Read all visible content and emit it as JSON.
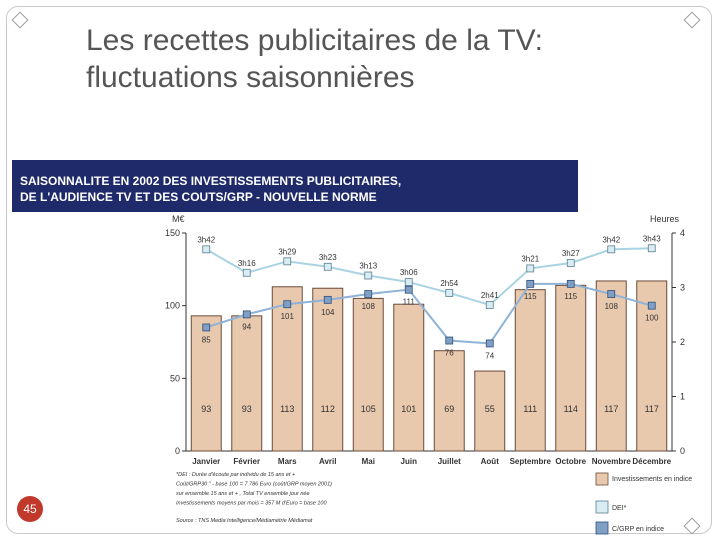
{
  "slide": {
    "title_line1": "Les recettes publicitaires de la TV:",
    "title_line2": "fluctuations saisonnières",
    "banner_line1": "SAISONNALITE EN 2002 DES INVESTISSEMENTS PUBLICITAIRES,",
    "banner_line2": "DE L'AUDIENCE TV ET DES COUTS/GRP - NOUVELLE NORME",
    "page_number": "45"
  },
  "colors": {
    "banner_bg": "#1f2a6b",
    "bar_fill": "#e8c9ae",
    "dei_fill": "#d9ecf4",
    "grp_fill": "#7f9fc4",
    "dei_line": "#a9d3e3",
    "grp_line": "#8fb2d8",
    "page_badge": "#c0392b"
  },
  "chart_data": {
    "type": "bar",
    "categories": [
      "Janvier",
      "Février",
      "Mars",
      "Avril",
      "Mai",
      "Juin",
      "Juillet",
      "Août",
      "Septembre",
      "Octobre",
      "Novembre",
      "Décembre"
    ],
    "ylabel": "M€",
    "y2label": "Heures",
    "ylim": [
      0,
      150
    ],
    "yticks": [
      "0",
      "50",
      "100",
      "150"
    ],
    "y2lim": [
      0,
      4
    ],
    "y2ticks": [
      "0",
      "1",
      "2",
      "3",
      "4"
    ],
    "series": [
      {
        "name": "Investissements en indice",
        "kind": "bar",
        "values": [
          93,
          93,
          113,
          112,
          105,
          101,
          69,
          55,
          111,
          114,
          117,
          117
        ]
      },
      {
        "name": "DEI*",
        "kind": "line",
        "axis": "right",
        "values": [
          3.7,
          3.27,
          3.48,
          3.38,
          3.22,
          3.1,
          2.9,
          2.68,
          3.35,
          3.45,
          3.7,
          3.72
        ],
        "labels": [
          "3h42",
          "3h16",
          "3h29",
          "3h23",
          "3h13",
          "3h06",
          "2h54",
          "2h41",
          "3h21",
          "3h27",
          "3h42",
          "3h43"
        ]
      },
      {
        "name": "C/GRP en indice",
        "kind": "line",
        "axis": "left",
        "values": [
          85,
          94,
          101,
          104,
          108,
          111,
          76,
          74,
          115,
          115,
          108,
          100
        ],
        "labels": [
          "85",
          "94",
          "101",
          "104",
          "108",
          "111",
          "76",
          "74",
          "115",
          "115",
          "108",
          "100"
        ]
      }
    ],
    "legend_placement": "bottom-right",
    "footnotes": [
      "*DEI : Durée d'écoute par individu de 15 ans et +",
      "Coût/GRP30 \" - base 100 = 7 786 Euro (coût/GRP moyen 2001)",
      "sur ensemble 15 ans et + , Total TV ensemble jour née",
      "Investissements moyens par mois = 357 M d'Euro = base 100",
      "Source : TNS Media Intelligence/Médiamétrie Médiamat"
    ]
  }
}
